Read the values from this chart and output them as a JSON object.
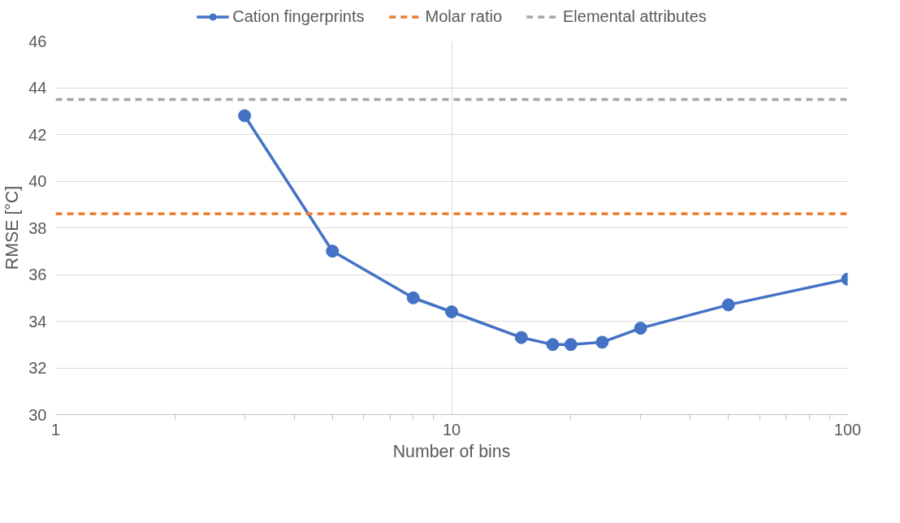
{
  "chart_data": {
    "type": "line",
    "xlabel": "Number of bins",
    "ylabel": "RMSE [°C]",
    "log": "x",
    "xlim": [
      1,
      100
    ],
    "xticks": [
      1,
      10,
      100
    ],
    "ylim": [
      30,
      46
    ],
    "yticks": [
      30,
      32,
      34,
      36,
      38,
      40,
      42,
      44,
      46
    ],
    "grid": true,
    "legend": "top",
    "series": [
      {
        "name": "Cation fingerprints",
        "color": "#4472c4",
        "marker": "circle",
        "line_style": "solid",
        "x": [
          3,
          5,
          8,
          10,
          15,
          18,
          20,
          24,
          30,
          50,
          100
        ],
        "values": [
          42.8,
          37.0,
          35.0,
          34.4,
          33.3,
          33.0,
          33.0,
          33.1,
          33.7,
          34.7,
          35.8
        ]
      },
      {
        "name": "Molar ratio",
        "color": "#ed7d31",
        "marker": "none",
        "line_style": "dashed",
        "x": [
          1,
          100
        ],
        "values": [
          38.6,
          38.6
        ]
      },
      {
        "name": "Elemental attributes",
        "color": "#a5a5a5",
        "marker": "none",
        "line_style": "dashed",
        "x": [
          1,
          100
        ],
        "values": [
          43.5,
          43.5
        ]
      }
    ]
  }
}
